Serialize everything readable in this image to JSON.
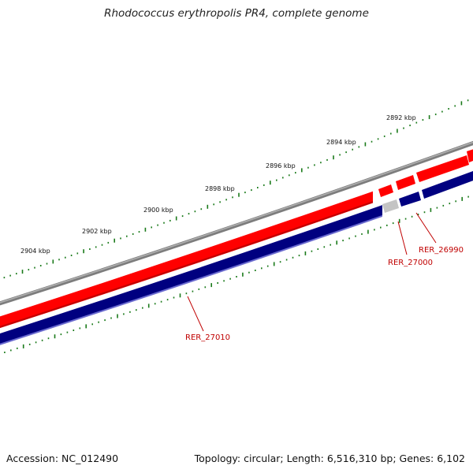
{
  "title": "Rhodococcus erythropolis PR4, complete genome",
  "footer": {
    "accession": "Accession: NC_012490",
    "summary": "Topology: circular; Length: 6,516,310 bp; Genes: 6,102"
  },
  "scale_labels": [
    "2892 kbp",
    "2894 kbp",
    "2896 kbp",
    "2898 kbp",
    "2900 kbp",
    "2902 kbp",
    "2904 kbp"
  ],
  "gene_labels": [
    "RER_27010",
    "RER_27000",
    "RER_26990"
  ],
  "colors": {
    "backbone": "#7f7f7f",
    "forward_strand": "#ff0000",
    "reverse_strand": "#000080",
    "pseudo_gene": "#c8c8c8",
    "ticks": "#1a7a1a",
    "label": "#c00000"
  }
}
